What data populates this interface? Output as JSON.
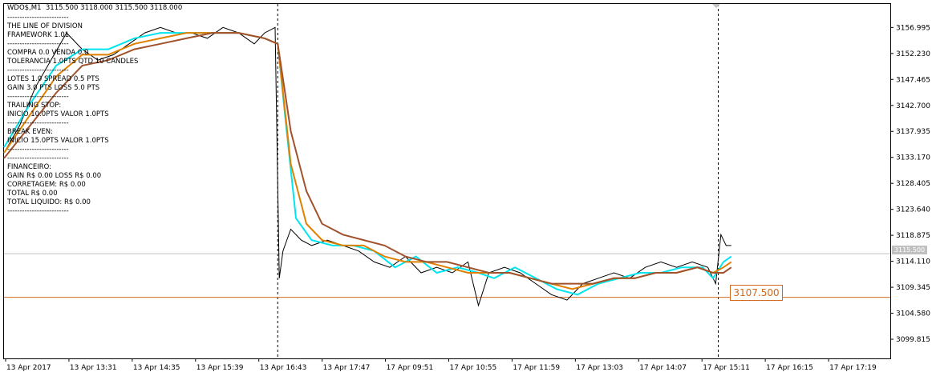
{
  "header": {
    "symbol_info": "WDO$,M1  3115.500 3118.000 3115.500 3118.000"
  },
  "panel": {
    "lines": [
      "-------------------------",
      "THE LINE OF DIVISION",
      "FRAMEWORK 1.01",
      "-------------------------",
      "COMPRA 0.0 VENDA 0.0",
      "TOLERANCIA 1.0PTS QTD 10 CANDLES",
      "-------------------------",
      "LOTES 1.0 SPREAD 0.5 PTS",
      "GAIN 3.0 PTS LOSS 5.0 PTS",
      "-------------------------",
      "TRAILING STOP:",
      "INICIO 10.0PTS VALOR 1.0PTS",
      "-------------------------",
      "BREAK EVEN:",
      "INICIO 15.0PTS VALOR 1.0PTS",
      "-------------------------",
      "-------------------------",
      "FINANCEIRO:",
      "GAIN R$ 0.00 LOSS R$ 0.00",
      "CORRETAGEM: R$ 0.00",
      "TOTAL R$ 0.00",
      "TOTAL LIQUIDO: R$ 0.00",
      "-------------------------"
    ]
  },
  "division_line": {
    "label": "3107.500",
    "value": 3107.5,
    "color": "#d2691e"
  },
  "current_price": {
    "label": "3115.500",
    "value": 3115.5
  },
  "chart_data": {
    "type": "line",
    "symbol": "WDO$",
    "timeframe": "M1",
    "y_ticks": [
      "3156.995",
      "3152.230",
      "3147.465",
      "3142.700",
      "3137.935",
      "3133.170",
      "3128.405",
      "3123.640",
      "3118.875",
      "3114.110",
      "3109.345",
      "3104.580",
      "3099.815"
    ],
    "y_tick_values": [
      3156.995,
      3152.23,
      3147.465,
      3142.7,
      3137.935,
      3133.17,
      3128.405,
      3123.64,
      3118.875,
      3114.11,
      3109.345,
      3104.58,
      3099.815
    ],
    "ylim": [
      3096.3,
      3161.3
    ],
    "x_ticks": [
      "13 Apr 2017",
      "13 Apr 13:31",
      "13 Apr 14:35",
      "13 Apr 15:39",
      "13 Apr 16:43",
      "13 Apr 17:47",
      "17 Apr 09:51",
      "17 Apr 10:55",
      "17 Apr 11:59",
      "17 Apr 13:03",
      "17 Apr 14:07",
      "17 Apr 15:11",
      "17 Apr 16:15",
      "17 Apr 17:19"
    ],
    "x_tick_index": [
      0,
      1,
      2,
      3,
      4,
      5,
      6,
      7,
      8,
      9,
      10,
      11,
      12,
      13
    ],
    "x_range": [
      0,
      17
    ],
    "session_breaks": [
      5.25,
      13.7
    ],
    "series": [
      {
        "key": "price",
        "color": "#000000",
        "x": [
          0,
          0.3,
          0.6,
          0.9,
          1.2,
          1.5,
          1.8,
          2.1,
          2.4,
          2.7,
          3.0,
          3.3,
          3.6,
          3.9,
          4.2,
          4.5,
          4.8,
          5.0,
          5.2,
          5.28,
          5.35,
          5.5,
          5.7,
          5.9,
          6.2,
          6.5,
          6.8,
          7.1,
          7.4,
          7.7,
          8.0,
          8.3,
          8.6,
          8.9,
          9.1,
          9.3,
          9.6,
          9.9,
          10.2,
          10.5,
          10.8,
          11.1,
          11.4,
          11.7,
          12.0,
          12.3,
          12.6,
          12.9,
          13.2,
          13.5,
          13.65,
          13.75,
          13.85,
          13.95
        ],
        "values": [
          3134,
          3139,
          3146,
          3151,
          3156,
          3153,
          3151,
          3152,
          3154,
          3156,
          3157,
          3156,
          3156,
          3155,
          3157,
          3156,
          3154,
          3156,
          3157,
          3111,
          3116,
          3120,
          3118,
          3117,
          3118,
          3117,
          3116,
          3114,
          3113,
          3115,
          3112,
          3113,
          3112,
          3114,
          3106,
          3112,
          3113,
          3112,
          3110,
          3108,
          3107,
          3110,
          3111,
          3112,
          3111,
          3113,
          3114,
          3113,
          3114,
          3113,
          3110,
          3119,
          3117,
          3117
        ]
      },
      {
        "key": "ma_fast",
        "color": "#00e5ee",
        "x": [
          0,
          0.5,
          1.0,
          1.5,
          2.0,
          2.5,
          3.0,
          3.5,
          4.0,
          4.5,
          5.0,
          5.25,
          5.4,
          5.6,
          5.9,
          6.3,
          6.7,
          7.1,
          7.5,
          7.9,
          8.3,
          8.7,
          9.1,
          9.4,
          9.8,
          10.2,
          10.6,
          11.0,
          11.4,
          11.8,
          12.2,
          12.6,
          13.0,
          13.4,
          13.6,
          13.8,
          13.95
        ],
        "values": [
          3135,
          3143,
          3150,
          3153,
          3153,
          3155,
          3156,
          3156,
          3156,
          3156,
          3155,
          3154,
          3140,
          3122,
          3118,
          3117,
          3117,
          3116,
          3113,
          3115,
          3112,
          3113,
          3112,
          3111,
          3113,
          3111,
          3109,
          3108,
          3110,
          3111,
          3112,
          3112,
          3113,
          3113,
          3111,
          3114,
          3115
        ]
      },
      {
        "key": "ma_medium",
        "color": "#e08000",
        "x": [
          0,
          0.5,
          1.0,
          1.5,
          2.0,
          2.5,
          3.0,
          3.5,
          4.0,
          4.5,
          5.0,
          5.25,
          5.5,
          5.8,
          6.1,
          6.5,
          6.9,
          7.3,
          7.7,
          8.1,
          8.5,
          8.9,
          9.3,
          9.7,
          10.1,
          10.5,
          10.9,
          11.3,
          11.7,
          12.1,
          12.5,
          12.9,
          13.3,
          13.6,
          13.8,
          13.95
        ],
        "values": [
          3134,
          3141,
          3148,
          3152,
          3152,
          3154,
          3155,
          3156,
          3156,
          3156,
          3155,
          3154,
          3132,
          3121,
          3118,
          3117,
          3117,
          3115,
          3114,
          3114,
          3113,
          3112,
          3112,
          3112,
          3111,
          3110,
          3109,
          3110,
          3111,
          3111,
          3112,
          3112,
          3113,
          3112,
          3113,
          3114
        ]
      },
      {
        "key": "ma_slow",
        "color": "#a0522d",
        "x": [
          0,
          0.5,
          1.0,
          1.5,
          2.0,
          2.5,
          3.0,
          3.5,
          4.0,
          4.5,
          5.0,
          5.25,
          5.5,
          5.8,
          6.1,
          6.5,
          6.9,
          7.3,
          7.7,
          8.1,
          8.5,
          8.9,
          9.3,
          9.7,
          10.1,
          10.5,
          10.9,
          11.3,
          11.7,
          12.1,
          12.5,
          12.9,
          13.3,
          13.6,
          13.8,
          13.95
        ],
        "values": [
          3133,
          3139,
          3145,
          3150,
          3151,
          3153,
          3154,
          3155,
          3156,
          3156,
          3155,
          3154,
          3138,
          3127,
          3121,
          3119,
          3118,
          3117,
          3115,
          3114,
          3114,
          3113,
          3112,
          3112,
          3111,
          3110,
          3110,
          3110,
          3111,
          3111,
          3112,
          3112,
          3113,
          3112,
          3112,
          3113
        ]
      }
    ]
  }
}
